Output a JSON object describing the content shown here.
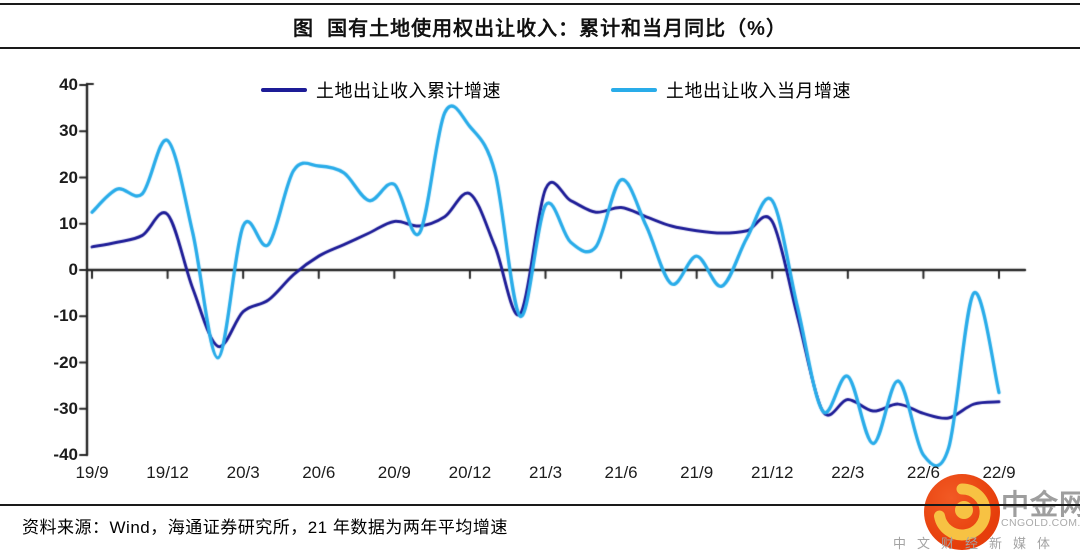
{
  "header": {
    "title": "图  国有土地使用权出让收入：累计和当月同比（%）"
  },
  "source_note": "资料来源：Wind，海通证券研究所，21 年数据为两年平均增速",
  "watermark": {
    "brand": "中金网",
    "domain": "CNGOLD.COM.CN",
    "tagline": "中文财经新媒体",
    "circle_color": "#e63e0b",
    "swirl_color": "#f7c243",
    "text_color": "#9e9e9e"
  },
  "chart_data": {
    "type": "line",
    "title": "国有土地使用权出让收入：累计和当月同比（%）",
    "xlabel": "",
    "ylabel": "",
    "ylim": [
      -40,
      40
    ],
    "yticks": [
      40,
      30,
      20,
      10,
      0,
      -10,
      -20,
      -30,
      -40
    ],
    "grid": false,
    "legend_position": "top-center",
    "axis_color": "#262626",
    "x": [
      "19/9",
      "19/10",
      "19/11",
      "19/12",
      "20/1",
      "20/2",
      "20/3",
      "20/4",
      "20/5",
      "20/6",
      "20/7",
      "20/8",
      "20/9",
      "20/10",
      "20/11",
      "20/12",
      "21/1",
      "21/2",
      "21/3",
      "21/4",
      "21/5",
      "21/6",
      "21/7",
      "21/8",
      "21/9",
      "21/10",
      "21/11",
      "21/12",
      "22/1",
      "22/2",
      "22/3",
      "22/4",
      "22/5",
      "22/6",
      "22/7",
      "22/8",
      "22/9"
    ],
    "x_tick_labels": [
      "19/9",
      "19/12",
      "20/3",
      "20/6",
      "20/9",
      "20/12",
      "21/3",
      "21/6",
      "21/9",
      "21/12",
      "22/3",
      "22/6",
      "22/9"
    ],
    "series": [
      {
        "name": "土地出让收入累计增速",
        "color": "#1d1c97",
        "line_width": 3,
        "values": [
          5,
          6,
          7.5,
          12,
          -4,
          -16.5,
          -9,
          -6.5,
          -1,
          3,
          5.5,
          8,
          10.5,
          9.5,
          11.5,
          16.5,
          5,
          -9.5,
          17.5,
          15,
          12.5,
          13.5,
          11.5,
          9.5,
          8.5,
          8,
          8.5,
          10.5,
          -10,
          -30.5,
          -28,
          -30.5,
          -29,
          -31,
          -32,
          -29,
          -28.5
        ]
      },
      {
        "name": "土地出让收入当月增速",
        "color": "#29ace9",
        "line_width": 3.4,
        "values": [
          12.5,
          17.5,
          16.5,
          28,
          8,
          -19,
          9.5,
          5.5,
          21.5,
          22.5,
          21,
          15,
          18.5,
          8,
          34,
          31,
          21,
          -10,
          14,
          6,
          5,
          19.5,
          9.5,
          -3,
          3,
          -3.5,
          7,
          15,
          -8,
          -30.5,
          -23,
          -37.5,
          -24,
          -40,
          -38.5,
          -5,
          -26.5
        ]
      }
    ]
  }
}
